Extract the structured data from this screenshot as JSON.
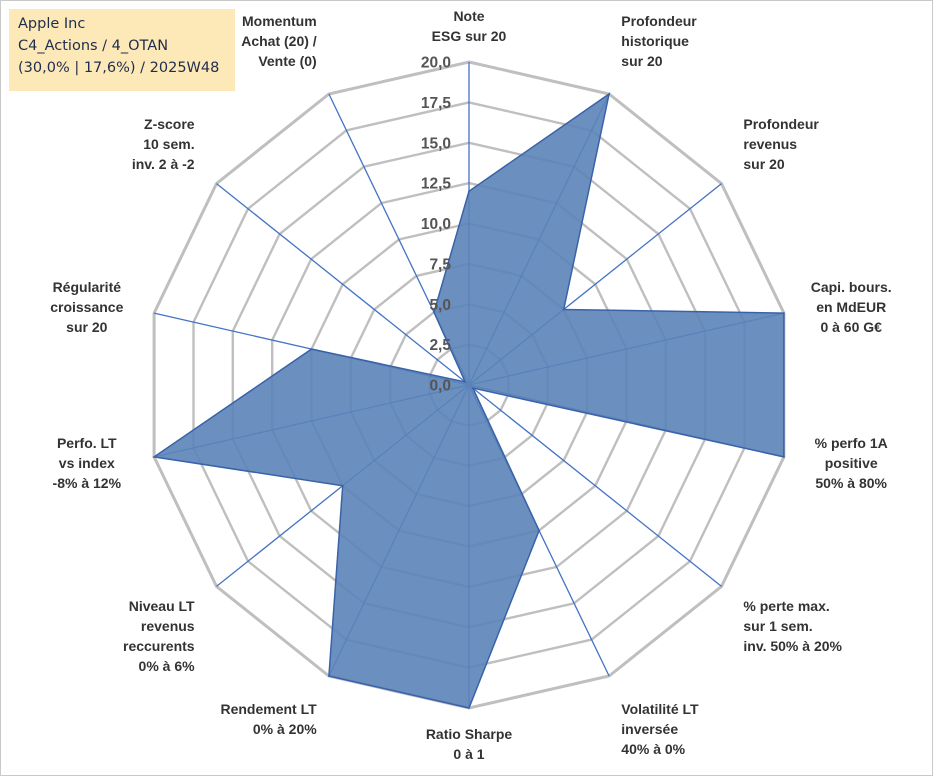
{
  "info": {
    "line1": "Apple Inc",
    "line2": "C4_Actions / 4_OTAN",
    "line3": "(30,0% | 17,6%) / 2025W48"
  },
  "colors": {
    "fill": "#5b84b8",
    "stroke": "#3a62a8",
    "spoke": "#4472c4",
    "grid": "#bfbfbf",
    "info_bg": "#fde9b8"
  },
  "chart_data": {
    "type": "radar",
    "title": "",
    "min": 0,
    "max": 20,
    "step": 2.5,
    "tick_labels": [
      "0,0",
      "2,5",
      "5,0",
      "7,5",
      "10,0",
      "12,5",
      "15,0",
      "17,5",
      "20,0"
    ],
    "grid": true,
    "axes": [
      {
        "label": "Note\nESG sur 20"
      },
      {
        "label": "Profondeur\nhistorique\nsur 20"
      },
      {
        "label": "Profondeur\nrevenus\nsur 20"
      },
      {
        "label": "Capi. bours.\nen MdEUR\n0 à 60 G€"
      },
      {
        "label": "% perfo 1A\npositive\n50% à 80%"
      },
      {
        "label": "% perte max.\nsur 1 sem.\ninv. 50% à 20%"
      },
      {
        "label": "Volatilité LT\ninversée\n40% à 0%"
      },
      {
        "label": "Ratio Sharpe\n0 à 1"
      },
      {
        "label": "Rendement LT\n0% à 20%"
      },
      {
        "label": "Niveau LT\nrevenus\nreccurents\n0% à 6%"
      },
      {
        "label": "Perfo. LT\nvs index\n-8% à 12%"
      },
      {
        "label": "Régularité\ncroissance\nsur 20"
      },
      {
        "label": "Z-score\n10 sem.\ninv. 2 à -2"
      },
      {
        "label": "Momentum\nAchat (20) /\nVente (0)"
      }
    ],
    "series": [
      {
        "values": [
          12.0,
          20.0,
          7.5,
          20.0,
          20.0,
          0.3,
          10.0,
          20.0,
          20.0,
          10.0,
          20.0,
          10.0,
          0.3,
          5.0
        ]
      }
    ]
  }
}
